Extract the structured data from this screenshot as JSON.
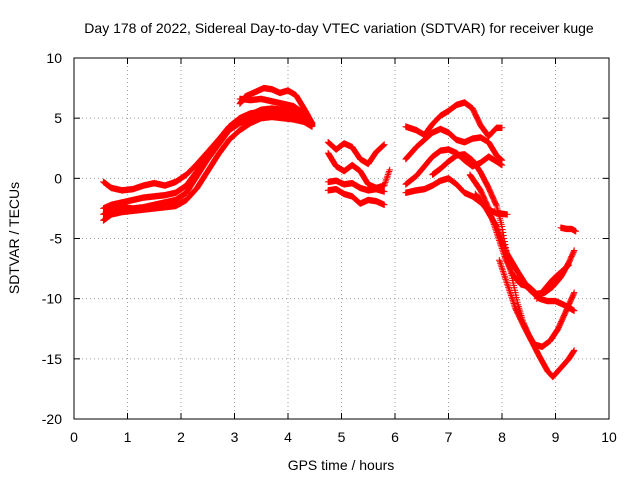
{
  "chart_data": {
    "type": "scatter",
    "title": "Day 178 of 2022, Sidereal Day-to-day VTEC variation (SDTVAR) for receiver kuge",
    "xlabel": "GPS time / hours",
    "ylabel": "SDTVAR / TECUs",
    "xlim": [
      0,
      10
    ],
    "ylim": [
      -20,
      10
    ],
    "x_ticks": [
      0,
      1,
      2,
      3,
      4,
      5,
      6,
      7,
      8,
      9,
      10
    ],
    "y_ticks": [
      -20,
      -15,
      -10,
      -5,
      0,
      5,
      10
    ],
    "x_tick_labels": [
      "0",
      "1",
      "2",
      "3",
      "4",
      "5",
      "6",
      "7",
      "8",
      "9",
      "10"
    ],
    "y_tick_labels": [
      "-20",
      "-15",
      "-10",
      "-5",
      "0",
      "5",
      "10"
    ],
    "grid": true,
    "marker": "+",
    "color": "#ff0000",
    "series": [
      {
        "name": "s1",
        "points": [
          [
            0.55,
            -0.3
          ],
          [
            0.7,
            -0.8
          ],
          [
            0.9,
            -1.0
          ],
          [
            1.1,
            -0.9
          ],
          [
            1.3,
            -0.6
          ],
          [
            1.5,
            -0.4
          ],
          [
            1.7,
            -0.6
          ],
          [
            1.9,
            -0.3
          ],
          [
            2.1,
            0.3
          ],
          [
            2.3,
            1.2
          ],
          [
            2.5,
            2.2
          ],
          [
            2.7,
            3.2
          ],
          [
            2.9,
            4.1
          ],
          [
            3.1,
            4.8
          ],
          [
            3.3,
            5.3
          ],
          [
            3.5,
            5.7
          ],
          [
            3.7,
            5.8
          ],
          [
            3.9,
            5.7
          ],
          [
            4.1,
            5.5
          ],
          [
            4.3,
            5.0
          ],
          [
            4.45,
            4.4
          ]
        ]
      },
      {
        "name": "s2",
        "points": [
          [
            0.55,
            -2.5
          ],
          [
            0.7,
            -2.2
          ],
          [
            0.9,
            -2.0
          ],
          [
            1.1,
            -1.8
          ],
          [
            1.3,
            -1.6
          ],
          [
            1.5,
            -1.5
          ],
          [
            1.7,
            -1.4
          ],
          [
            1.9,
            -1.2
          ],
          [
            2.1,
            -0.6
          ],
          [
            2.3,
            0.6
          ],
          [
            2.5,
            2.0
          ],
          [
            2.7,
            3.2
          ],
          [
            2.9,
            4.3
          ],
          [
            3.1,
            5.0
          ],
          [
            3.3,
            5.4
          ],
          [
            3.5,
            5.5
          ],
          [
            3.7,
            5.4
          ],
          [
            3.9,
            5.2
          ],
          [
            4.1,
            5.0
          ],
          [
            4.3,
            4.8
          ],
          [
            4.45,
            4.5
          ]
        ]
      },
      {
        "name": "s3",
        "points": [
          [
            0.55,
            -3.5
          ],
          [
            0.7,
            -3.0
          ],
          [
            0.9,
            -2.8
          ],
          [
            1.1,
            -2.7
          ],
          [
            1.3,
            -2.6
          ],
          [
            1.5,
            -2.5
          ],
          [
            1.7,
            -2.4
          ],
          [
            1.9,
            -2.3
          ],
          [
            2.1,
            -1.8
          ],
          [
            2.3,
            -0.8
          ],
          [
            2.5,
            0.6
          ],
          [
            2.7,
            2.0
          ],
          [
            2.9,
            3.2
          ],
          [
            3.1,
            4.0
          ],
          [
            3.3,
            4.6
          ],
          [
            3.5,
            5.0
          ],
          [
            3.7,
            5.1
          ],
          [
            3.9,
            5.0
          ],
          [
            4.1,
            4.9
          ],
          [
            4.3,
            4.7
          ],
          [
            4.45,
            4.3
          ]
        ]
      },
      {
        "name": "s4",
        "points": [
          [
            0.55,
            -3.0
          ],
          [
            0.7,
            -2.6
          ],
          [
            0.9,
            -2.4
          ],
          [
            1.1,
            -2.5
          ],
          [
            1.3,
            -2.4
          ],
          [
            1.5,
            -2.2
          ],
          [
            1.7,
            -2.0
          ],
          [
            1.9,
            -1.8
          ],
          [
            2.1,
            -1.2
          ],
          [
            2.3,
            0.2
          ],
          [
            2.5,
            1.6
          ],
          [
            2.7,
            2.8
          ],
          [
            2.9,
            4.0
          ],
          [
            3.1,
            4.6
          ],
          [
            3.3,
            5.0
          ],
          [
            3.5,
            5.2
          ],
          [
            3.7,
            5.3
          ],
          [
            3.9,
            5.4
          ],
          [
            4.1,
            5.3
          ],
          [
            4.3,
            5.0
          ],
          [
            4.45,
            4.5
          ]
        ]
      },
      {
        "name": "s5",
        "points": [
          [
            3.1,
            6.2
          ],
          [
            3.2,
            6.8
          ],
          [
            3.4,
            7.2
          ],
          [
            3.55,
            7.5
          ],
          [
            3.7,
            7.4
          ],
          [
            3.85,
            7.1
          ],
          [
            4.0,
            7.3
          ],
          [
            4.15,
            6.9
          ],
          [
            4.3,
            5.8
          ],
          [
            4.45,
            4.6
          ]
        ]
      },
      {
        "name": "s6",
        "points": [
          [
            3.1,
            6.6
          ],
          [
            3.3,
            6.5
          ],
          [
            3.5,
            6.6
          ],
          [
            3.7,
            6.4
          ],
          [
            3.9,
            6.2
          ],
          [
            4.1,
            6.0
          ],
          [
            4.3,
            5.4
          ],
          [
            4.45,
            4.6
          ]
        ]
      },
      {
        "name": "s7",
        "points": [
          [
            4.75,
            3.0
          ],
          [
            4.9,
            2.4
          ],
          [
            5.05,
            2.9
          ],
          [
            5.2,
            2.6
          ],
          [
            5.35,
            1.6
          ],
          [
            5.5,
            1.2
          ],
          [
            5.65,
            2.2
          ],
          [
            5.8,
            2.8
          ]
        ]
      },
      {
        "name": "s8",
        "points": [
          [
            4.75,
            2.1
          ],
          [
            4.9,
            1.0
          ],
          [
            5.05,
            0.6
          ],
          [
            5.2,
            1.1
          ],
          [
            5.35,
            0.6
          ],
          [
            5.5,
            -0.5
          ],
          [
            5.65,
            -0.8
          ],
          [
            5.8,
            -0.6
          ],
          [
            5.9,
            0.7
          ]
        ]
      },
      {
        "name": "s9",
        "points": [
          [
            4.75,
            -0.3
          ],
          [
            4.9,
            -0.2
          ],
          [
            5.05,
            -0.5
          ],
          [
            5.2,
            -0.4
          ],
          [
            5.35,
            -0.8
          ],
          [
            5.5,
            -1.0
          ],
          [
            5.65,
            -0.9
          ],
          [
            5.8,
            -1.1
          ]
        ]
      },
      {
        "name": "s10",
        "points": [
          [
            4.75,
            -1.0
          ],
          [
            4.9,
            -0.9
          ],
          [
            5.05,
            -1.3
          ],
          [
            5.2,
            -1.5
          ],
          [
            5.35,
            -2.1
          ],
          [
            5.5,
            -1.8
          ],
          [
            5.65,
            -1.9
          ],
          [
            5.8,
            -2.2
          ]
        ]
      },
      {
        "name": "s11",
        "points": [
          [
            6.2,
            4.3
          ],
          [
            6.4,
            4.0
          ],
          [
            6.55,
            3.6
          ],
          [
            6.7,
            4.5
          ],
          [
            6.85,
            5.2
          ],
          [
            7.0,
            5.6
          ],
          [
            7.15,
            6.1
          ],
          [
            7.3,
            6.3
          ],
          [
            7.45,
            5.8
          ],
          [
            7.6,
            4.4
          ],
          [
            7.75,
            3.5
          ],
          [
            7.9,
            4.2
          ],
          [
            8.0,
            4.2
          ]
        ]
      },
      {
        "name": "s12",
        "points": [
          [
            6.2,
            1.6
          ],
          [
            6.4,
            2.6
          ],
          [
            6.55,
            3.2
          ],
          [
            6.7,
            3.8
          ],
          [
            6.85,
            4.1
          ],
          [
            7.0,
            3.8
          ],
          [
            7.15,
            3.2
          ],
          [
            7.3,
            3.0
          ],
          [
            7.45,
            3.3
          ],
          [
            7.6,
            3.4
          ],
          [
            7.75,
            3.0
          ],
          [
            7.9,
            1.9
          ],
          [
            8.0,
            1.5
          ]
        ]
      },
      {
        "name": "s13",
        "points": [
          [
            6.2,
            -0.5
          ],
          [
            6.4,
            0.2
          ],
          [
            6.55,
            1.0
          ],
          [
            6.7,
            1.8
          ],
          [
            6.85,
            2.3
          ],
          [
            7.0,
            2.4
          ],
          [
            7.15,
            2.1
          ],
          [
            7.3,
            1.5
          ],
          [
            7.45,
            1.0
          ],
          [
            7.6,
            1.3
          ],
          [
            7.75,
            1.8
          ],
          [
            7.9,
            1.4
          ],
          [
            8.0,
            1.1
          ]
        ]
      },
      {
        "name": "s14",
        "points": [
          [
            6.2,
            -1.2
          ],
          [
            6.4,
            -1.0
          ],
          [
            6.55,
            -0.9
          ],
          [
            6.7,
            -0.6
          ],
          [
            6.85,
            -0.2
          ],
          [
            7.0,
            0.0
          ],
          [
            7.15,
            -0.5
          ],
          [
            7.3,
            -1.2
          ],
          [
            7.45,
            -1.5
          ],
          [
            7.6,
            -2.0
          ],
          [
            7.75,
            -2.6
          ],
          [
            7.9,
            -2.9
          ],
          [
            8.1,
            -3.0
          ]
        ]
      },
      {
        "name": "s15",
        "points": [
          [
            6.7,
            0.3
          ],
          [
            6.85,
            0.8
          ],
          [
            7.0,
            1.4
          ],
          [
            7.15,
            1.9
          ],
          [
            7.3,
            2.0
          ],
          [
            7.45,
            1.5
          ],
          [
            7.6,
            0.5
          ],
          [
            7.75,
            -0.8
          ],
          [
            7.9,
            -2.3
          ],
          [
            8.0,
            -4.0
          ],
          [
            8.1,
            -6.5
          ],
          [
            8.2,
            -8.5
          ],
          [
            8.3,
            -10.5
          ],
          [
            8.4,
            -12.0
          ],
          [
            8.5,
            -13.0
          ],
          [
            8.6,
            -13.8
          ],
          [
            8.75,
            -14.0
          ],
          [
            8.9,
            -13.5
          ],
          [
            9.05,
            -12.5
          ],
          [
            9.2,
            -11.0
          ],
          [
            9.35,
            -9.5
          ]
        ]
      },
      {
        "name": "s16",
        "points": [
          [
            7.4,
            0.3
          ],
          [
            7.6,
            -1.0
          ],
          [
            7.75,
            -2.5
          ],
          [
            7.9,
            -4.5
          ],
          [
            8.05,
            -6.5
          ],
          [
            8.2,
            -8.0
          ],
          [
            8.35,
            -8.8
          ],
          [
            8.5,
            -9.0
          ],
          [
            8.65,
            -9.6
          ],
          [
            8.8,
            -9.5
          ],
          [
            8.95,
            -9.0
          ],
          [
            9.1,
            -8.2
          ],
          [
            9.25,
            -7.0
          ],
          [
            9.35,
            -6.0
          ]
        ]
      },
      {
        "name": "s17",
        "points": [
          [
            7.5,
            -1.3
          ],
          [
            7.7,
            -2.5
          ],
          [
            7.9,
            -4.0
          ],
          [
            8.1,
            -6.3
          ],
          [
            8.3,
            -7.8
          ],
          [
            8.5,
            -9.2
          ],
          [
            8.7,
            -10.0
          ],
          [
            8.85,
            -10.2
          ],
          [
            9.0,
            -10.2
          ],
          [
            9.15,
            -10.5
          ],
          [
            9.35,
            -11.0
          ]
        ]
      },
      {
        "name": "s18",
        "points": [
          [
            7.95,
            -6.8
          ],
          [
            8.1,
            -8.8
          ],
          [
            8.25,
            -10.8
          ],
          [
            8.4,
            -12.2
          ],
          [
            8.55,
            -13.5
          ],
          [
            8.7,
            -14.8
          ],
          [
            8.85,
            -16.0
          ],
          [
            8.95,
            -16.5
          ],
          [
            9.05,
            -16.0
          ],
          [
            9.15,
            -15.5
          ],
          [
            9.25,
            -15.0
          ],
          [
            9.35,
            -14.3
          ]
        ]
      },
      {
        "name": "s19",
        "points": [
          [
            8.65,
            -10.0
          ],
          [
            8.8,
            -9.2
          ],
          [
            8.95,
            -8.4
          ],
          [
            9.1,
            -7.8
          ],
          [
            9.25,
            -7.2
          ]
        ]
      },
      {
        "name": "s20",
        "points": [
          [
            9.1,
            -4.1
          ],
          [
            9.2,
            -4.2
          ],
          [
            9.3,
            -4.2
          ],
          [
            9.38,
            -4.4
          ]
        ]
      }
    ]
  }
}
